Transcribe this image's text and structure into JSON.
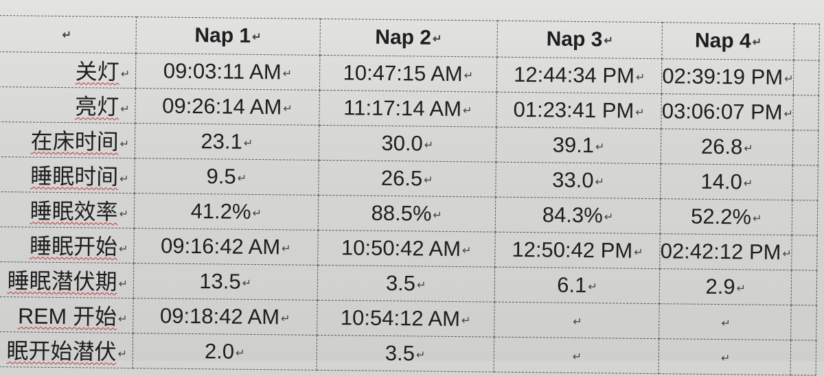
{
  "table": {
    "headers": [
      "",
      "Nap 1",
      "Nap 2",
      "Nap 3",
      "Nap 4"
    ],
    "rows": [
      {
        "label": "关灯",
        "values": [
          "09:03:11 AM",
          "10:47:15 AM",
          "12:44:34 PM",
          "02:39:19 PM"
        ]
      },
      {
        "label": "亮灯",
        "values": [
          "09:26:14 AM",
          "11:17:14 AM",
          "01:23:41 PM",
          "03:06:07 PM"
        ]
      },
      {
        "label": "在床时间",
        "values": [
          "23.1",
          "30.0",
          "39.1",
          "26.8"
        ]
      },
      {
        "label": "睡眠时间",
        "values": [
          "9.5",
          "26.5",
          "33.0",
          "14.0"
        ]
      },
      {
        "label": "睡眠效率",
        "values": [
          "41.2%",
          "88.5%",
          "84.3%",
          "52.2%"
        ]
      },
      {
        "label": "睡眠开始",
        "values": [
          "09:16:42 AM",
          "10:50:42 AM",
          "12:50:42 PM",
          "02:42:12 PM"
        ]
      },
      {
        "label": "睡眠潜伏期",
        "values": [
          "13.5",
          "3.5",
          "6.1",
          "2.9"
        ]
      },
      {
        "label": "REM 开始",
        "values": [
          "09:18:42 AM",
          "10:54:12 AM",
          "",
          ""
        ]
      },
      {
        "label": "眠开始潜伏",
        "values": [
          "2.0",
          "3.5",
          "",
          ""
        ]
      }
    ]
  }
}
